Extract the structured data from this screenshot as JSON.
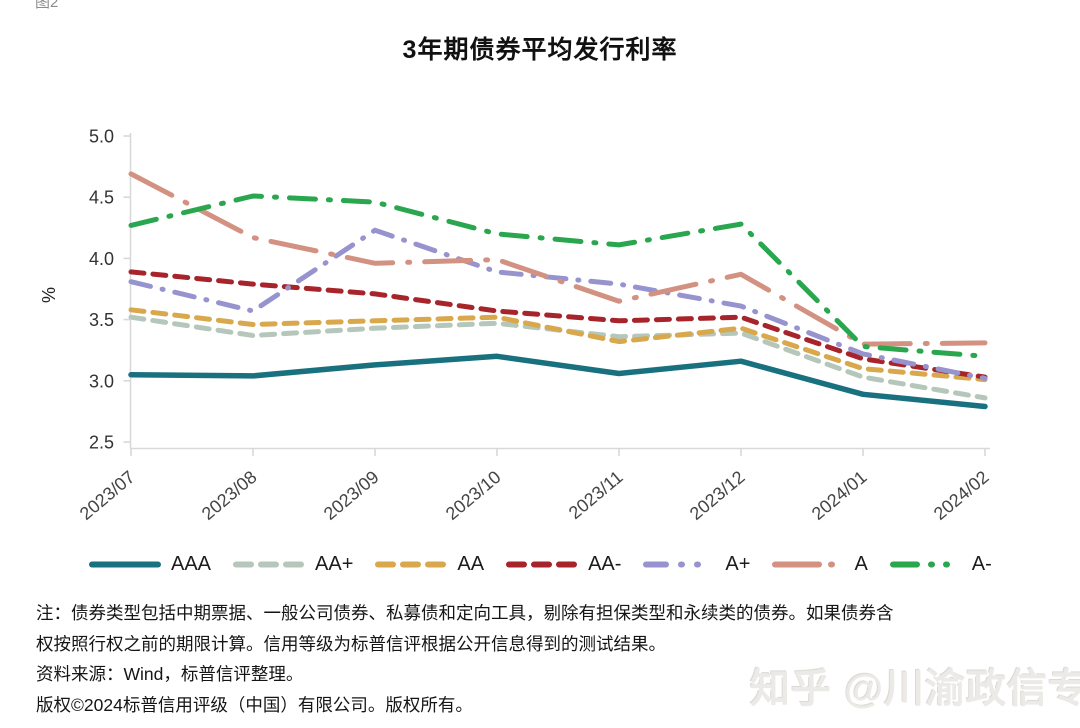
{
  "figure_label": "图2",
  "title": "3年期债券平均发行利率",
  "watermark": "知乎 @川渝政信专栏",
  "notes": {
    "line1": "注：债券类型包括中期票据、一般公司债券、私募债和定向工具，剔除有担保类型和永续类的债券。如果债券含",
    "line2": "权按照行权之前的期限计算。信用等级为标普信评根据公开信息得到的测试结果。",
    "source": "资料来源：Wind，标普信评整理。",
    "copyright": "版权©2024标普信用评级（中国）有限公司。版权所有。"
  },
  "axis_colors": {
    "line": "#d9d9d9",
    "tick_text": "#333333",
    "x_label_text": "#444444"
  },
  "chart_data": {
    "type": "line",
    "title": "3年期债券平均发行利率",
    "xlabel": "",
    "ylabel": "%",
    "ylim": [
      2.5,
      5.0
    ],
    "y_ticks": [
      "5.0",
      "4.5",
      "4.0",
      "3.5",
      "3.0",
      "2.5"
    ],
    "grid": false,
    "legend_position": "bottom",
    "categories": [
      "2023/07",
      "2023/08",
      "2023/09",
      "2023/10",
      "2023/11",
      "2023/12",
      "2024/01",
      "2024/02"
    ],
    "series": [
      {
        "name": "AAA",
        "color": "#19717f",
        "dash_style": "solid",
        "dasharray": "",
        "legend_dasharray": "",
        "width": 5.5,
        "values": [
          3.05,
          3.04,
          3.13,
          3.2,
          3.06,
          3.16,
          2.89,
          2.79
        ]
      },
      {
        "name": "AA+",
        "color": "#b5c7ba",
        "dash_style": "dashed",
        "dasharray": "13 9",
        "legend_dasharray": "15 10",
        "width": 5,
        "values": [
          3.52,
          3.37,
          3.43,
          3.47,
          3.36,
          3.39,
          3.03,
          2.86
        ]
      },
      {
        "name": "AA",
        "color": "#d9a74c",
        "dash_style": "dashed",
        "dasharray": "13 9",
        "legend_dasharray": "15 10",
        "width": 5,
        "values": [
          3.58,
          3.46,
          3.49,
          3.52,
          3.32,
          3.43,
          3.1,
          3.01
        ]
      },
      {
        "name": "AA-",
        "color": "#a6242a",
        "dash_style": "dashed",
        "dasharray": "13 9",
        "legend_dasharray": "15 10",
        "width": 5,
        "values": [
          3.89,
          3.79,
          3.71,
          3.57,
          3.49,
          3.52,
          3.18,
          3.03
        ]
      },
      {
        "name": "A+",
        "color": "#9693cf",
        "dash_style": "dash-dot",
        "dasharray": "20 12 1 12",
        "legend_dasharray": "20 15 1 15 1 15",
        "width": 5,
        "values": [
          3.81,
          3.57,
          4.23,
          3.89,
          3.79,
          3.61,
          3.22,
          3.02
        ]
      },
      {
        "name": "A",
        "color": "#d39181",
        "dash_style": "long-dash-dot",
        "dasharray": "46 15 2 15",
        "legend_dasharray": "44 12 1 12",
        "width": 5,
        "values": [
          4.69,
          4.17,
          3.96,
          3.99,
          3.65,
          3.87,
          3.3,
          3.31
        ]
      },
      {
        "name": "A-",
        "color": "#29a64e",
        "dash_style": "dash-dot",
        "dasharray": "26 13 2 13",
        "legend_dasharray": "24 14 1 14 1 14",
        "width": 5,
        "values": [
          4.27,
          4.51,
          4.46,
          4.2,
          4.11,
          4.28,
          3.28,
          3.2
        ]
      }
    ]
  }
}
